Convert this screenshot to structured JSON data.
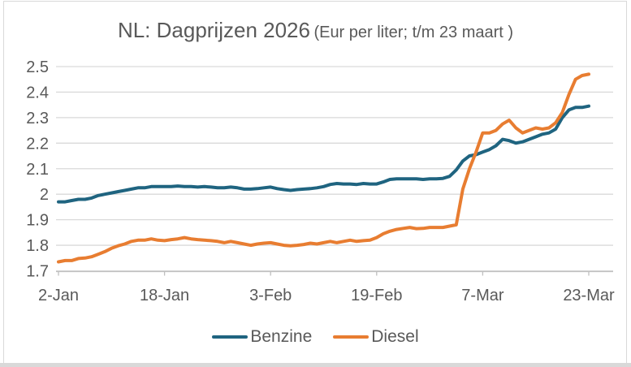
{
  "chart_data": {
    "type": "line",
    "title": "NL: Dagprijzen 2026",
    "subtitle": "(Eur per liter; t/m 23 maart )",
    "xlabel": "",
    "ylabel": "",
    "ylim": [
      1.7,
      2.5
    ],
    "grid": true,
    "legend_position": "bottom",
    "axis_text_color": "#595959",
    "gridline_color": "#d9d9d9",
    "axis_line_color": "#bfbfbf",
    "y_ticks": [
      {
        "value": 2.5,
        "label": "2.5"
      },
      {
        "value": 2.4,
        "label": "2.4"
      },
      {
        "value": 2.3,
        "label": "2.3"
      },
      {
        "value": 2.2,
        "label": "2.2"
      },
      {
        "value": 2.1,
        "label": "2.1"
      },
      {
        "value": 2.0,
        "label": "2"
      },
      {
        "value": 1.9,
        "label": "1.9"
      },
      {
        "value": 1.8,
        "label": "1.8"
      },
      {
        "value": 1.7,
        "label": "1.7"
      }
    ],
    "x_count": 81,
    "x_ticks": [
      {
        "index": 0,
        "label": "2-Jan"
      },
      {
        "index": 16,
        "label": "18-Jan"
      },
      {
        "index": 32,
        "label": "3-Feb"
      },
      {
        "index": 48,
        "label": "19-Feb"
      },
      {
        "index": 64,
        "label": "7-Mar"
      },
      {
        "index": 80,
        "label": "23-Mar"
      }
    ],
    "series": [
      {
        "name": "Benzine",
        "color": "#1f6480",
        "values": [
          1.97,
          1.97,
          1.975,
          1.98,
          1.98,
          1.985,
          1.995,
          2.0,
          2.005,
          2.01,
          2.015,
          2.02,
          2.025,
          2.025,
          2.03,
          2.03,
          2.03,
          2.03,
          2.032,
          2.03,
          2.03,
          2.028,
          2.03,
          2.028,
          2.025,
          2.025,
          2.028,
          2.025,
          2.02,
          2.02,
          2.022,
          2.025,
          2.028,
          2.022,
          2.018,
          2.015,
          2.018,
          2.02,
          2.022,
          2.025,
          2.03,
          2.038,
          2.042,
          2.04,
          2.04,
          2.038,
          2.042,
          2.04,
          2.04,
          2.048,
          2.058,
          2.06,
          2.06,
          2.06,
          2.06,
          2.058,
          2.06,
          2.06,
          2.062,
          2.07,
          2.095,
          2.13,
          2.15,
          2.155,
          2.165,
          2.175,
          2.19,
          2.215,
          2.21,
          2.2,
          2.205,
          2.215,
          2.225,
          2.235,
          2.24,
          2.255,
          2.3,
          2.33,
          2.34,
          2.34,
          2.345
        ]
      },
      {
        "name": "Diesel",
        "color": "#e87d31",
        "values": [
          1.735,
          1.74,
          1.74,
          1.748,
          1.75,
          1.755,
          1.765,
          1.775,
          1.788,
          1.798,
          1.805,
          1.815,
          1.82,
          1.82,
          1.825,
          1.82,
          1.818,
          1.822,
          1.825,
          1.83,
          1.825,
          1.822,
          1.82,
          1.818,
          1.815,
          1.81,
          1.815,
          1.81,
          1.805,
          1.8,
          1.805,
          1.808,
          1.81,
          1.805,
          1.8,
          1.798,
          1.8,
          1.803,
          1.808,
          1.805,
          1.81,
          1.815,
          1.81,
          1.815,
          1.82,
          1.815,
          1.818,
          1.82,
          1.83,
          1.845,
          1.855,
          1.862,
          1.866,
          1.87,
          1.865,
          1.866,
          1.87,
          1.87,
          1.87,
          1.875,
          1.88,
          2.02,
          2.1,
          2.165,
          2.24,
          2.24,
          2.25,
          2.275,
          2.29,
          2.26,
          2.24,
          2.25,
          2.26,
          2.255,
          2.26,
          2.28,
          2.32,
          2.39,
          2.45,
          2.465,
          2.47
        ]
      }
    ]
  }
}
